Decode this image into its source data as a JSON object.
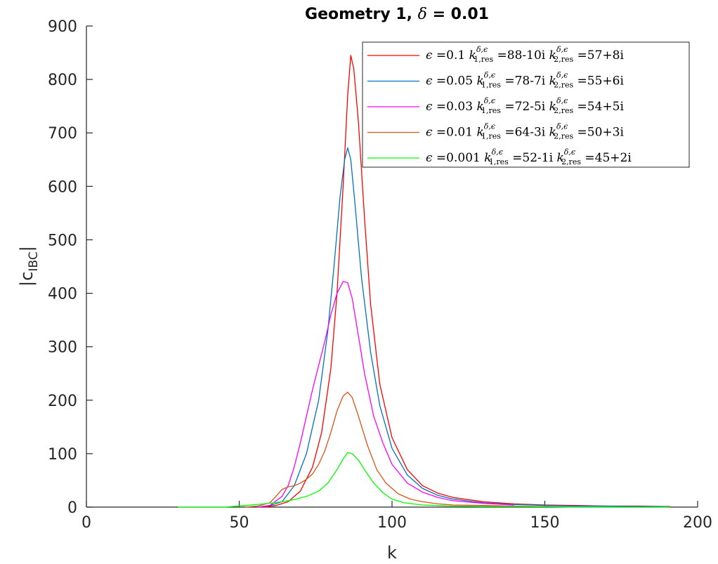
{
  "chart_data": {
    "type": "line",
    "title": "Geometry 1, δ = 0.01",
    "xlabel": "k",
    "ylabel": "|c_IBC|",
    "xlim": [
      0,
      200
    ],
    "ylim": [
      0,
      900
    ],
    "xticks": [
      0,
      50,
      100,
      150,
      200
    ],
    "yticks": [
      0,
      100,
      200,
      300,
      400,
      500,
      600,
      700,
      800,
      900
    ],
    "grid": false,
    "legend_position": "top-right",
    "series": [
      {
        "name": "ε =0.1 k^{δ,ε}_{1,res} =88-10i k^{δ,ε}_{2,res} =57+8i",
        "color": "#ff0000",
        "x": [
          58,
          62,
          66,
          70,
          74,
          77,
          80,
          82,
          84,
          85.5,
          86.5,
          87.5,
          89,
          91,
          93,
          96,
          100,
          105,
          110,
          115,
          120,
          130,
          140,
          150,
          160,
          170,
          180,
          191
        ],
        "y": [
          0,
          3,
          10,
          30,
          75,
          140,
          260,
          400,
          600,
          770,
          845,
          820,
          720,
          540,
          380,
          230,
          130,
          70,
          40,
          26,
          18,
          10,
          6,
          4,
          3,
          2,
          2,
          1
        ]
      },
      {
        "name": "ε =0.05 k^{δ,ε}_{1,res} =78-7i k^{δ,ε}_{2,res} =55+6i",
        "color": "#0072bd",
        "x": [
          56,
          60,
          64,
          68,
          72,
          76,
          79,
          81,
          83,
          84.5,
          85.5,
          86.5,
          88,
          90,
          93,
          96,
          100,
          105,
          110,
          115,
          120,
          130,
          140,
          150,
          160,
          170,
          180,
          190
        ],
        "y": [
          0,
          3,
          10,
          40,
          100,
          200,
          330,
          450,
          580,
          650,
          672,
          650,
          560,
          430,
          290,
          190,
          110,
          60,
          35,
          22,
          15,
          8,
          5,
          3,
          2,
          2,
          1,
          1
        ]
      },
      {
        "name": "ε =0.03 k^{δ,ε}_{1,res} =72-5i k^{δ,ε}_{2,res} =54+5i",
        "color": "#ff00ff",
        "x": [
          56,
          60,
          64,
          66,
          68,
          70,
          72,
          74,
          76,
          78,
          80,
          82,
          84,
          85.5,
          87,
          89,
          91,
          94,
          97,
          100,
          105,
          110,
          115,
          120,
          130,
          140
        ],
        "y": [
          0,
          3,
          20,
          40,
          75,
          120,
          170,
          220,
          265,
          310,
          360,
          400,
          422,
          420,
          390,
          320,
          250,
          170,
          120,
          80,
          45,
          28,
          18,
          12,
          7,
          4
        ]
      },
      {
        "name": "ε =0.01 k^{δ,ε}_{1,res} =64-3i k^{δ,ε}_{2,res} =50+3i",
        "color": "#d95319",
        "x": [
          52,
          56,
          60,
          62,
          64,
          66,
          68,
          70,
          72,
          74,
          76,
          78,
          80,
          82,
          84,
          85.5,
          87,
          89,
          92,
          95,
          98,
          102,
          106,
          110,
          115,
          120,
          130,
          140,
          150
        ],
        "y": [
          0,
          2,
          8,
          20,
          33,
          38,
          40,
          45,
          52,
          62,
          80,
          105,
          140,
          180,
          208,
          215,
          205,
          170,
          115,
          70,
          45,
          25,
          15,
          10,
          6,
          4,
          3,
          2,
          1
        ]
      },
      {
        "name": "ε =0.001 k^{δ,ε}_{1,res} =52-1i k^{δ,ε}_{2,res} =45+2i",
        "color": "#00ff00",
        "x": [
          30,
          45,
          52,
          58,
          64,
          68,
          72,
          76,
          79,
          82,
          84,
          85.5,
          87,
          89,
          91,
          94,
          97,
          100,
          104,
          110,
          120,
          130,
          140,
          150,
          160,
          180,
          191
        ],
        "y": [
          0,
          0,
          3,
          6,
          10,
          14,
          20,
          30,
          45,
          70,
          90,
          102,
          100,
          88,
          70,
          45,
          27,
          15,
          8,
          4,
          2,
          1,
          1,
          1,
          0,
          0,
          0
        ]
      }
    ]
  },
  "legend": {
    "entries": [
      {
        "eps": "0.1",
        "k1": "88-10i",
        "k2": "57+8i"
      },
      {
        "eps": "0.05",
        "k1": "78-7i",
        "k2": "55+6i"
      },
      {
        "eps": "0.03",
        "k1": "72-5i",
        "k2": "54+5i"
      },
      {
        "eps": "0.01",
        "k1": "64-3i",
        "k2": "50+3i"
      },
      {
        "eps": "0.001",
        "k1": "52-1i",
        "k2": "45+2i"
      }
    ]
  },
  "labels": {
    "title_main": "Geometry 1, ",
    "title_delta": "δ",
    "title_value": " = 0.01",
    "ylabel_main": "|c",
    "ylabel_sub": "IBC",
    "ylabel_end": "|",
    "xlabel": "k",
    "eps_symbol": "ϵ",
    "k_symbol": "k",
    "sup_text": "δ,ϵ",
    "sub1": "1,res",
    "sub2": "2,res",
    "eq": " =",
    "space": " "
  }
}
